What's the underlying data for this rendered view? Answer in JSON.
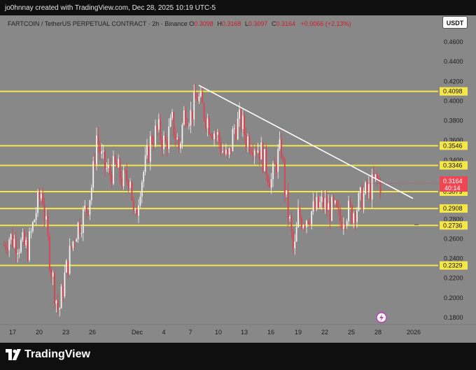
{
  "header": {
    "attribution": "jo0hnnay created with TradingView.com, Dec 28, 2025 10:19 UTC-5"
  },
  "legend": {
    "symbol": "FARTCOIN / TetherUS PERPETUAL CONTRACT · 2h · Binance",
    "open_label": "O",
    "open": "0.3098",
    "high_label": "H",
    "high": "0.3168",
    "low_label": "L",
    "low": "0.3097",
    "close_label": "C",
    "close": "0.3164",
    "change": "+0.0066 (+2.13%)"
  },
  "currency_button": "USDT",
  "footer": {
    "brand": "TradingView"
  },
  "colors": {
    "chart_bg": "#888888",
    "level_line": "#f5e64a",
    "trendline": "#ffffff",
    "up_candle": "#f2f2f2",
    "down_candle": "#e0404b",
    "last_price": "#f04653"
  },
  "icons": {
    "alert": "lightning-icon",
    "logo": "tradingview-logo-icon"
  },
  "chart_data": {
    "type": "candlestick",
    "symbol": "FARTCOIN / TetherUS PERPETUAL CONTRACT",
    "interval": "2h",
    "exchange": "Binance",
    "ylim": [
      0.17,
      0.47
    ],
    "y_ticks": [
      "0.4600",
      "0.4400",
      "0.4200",
      "0.4000",
      "0.3800",
      "0.3600",
      "0.3400",
      "0.3200",
      "0.2800",
      "0.2600",
      "0.2400",
      "0.2200",
      "0.2000",
      "0.1800"
    ],
    "x_ticks": [
      "17",
      "20",
      "23",
      "26",
      "Dec",
      "4",
      "7",
      "10",
      "13",
      "16",
      "19",
      "22",
      "25",
      "28",
      "2026"
    ],
    "levels": [
      "0.4098",
      "0.3546",
      "0.3346",
      "0.3079",
      "0.2908",
      "0.2736",
      "0.2329"
    ],
    "last_price": "0.3164",
    "countdown": "40:14",
    "trendline": {
      "from": [
        "Dec 7",
        0.416
      ],
      "to": [
        "Dec 31",
        0.301
      ]
    },
    "path": [
      [
        0,
        0.245
      ],
      [
        12,
        0.262
      ],
      [
        25,
        0.256
      ],
      [
        40,
        0.25
      ],
      [
        52,
        0.29
      ],
      [
        60,
        0.31
      ],
      [
        66,
        0.27
      ],
      [
        72,
        0.235
      ],
      [
        78,
        0.208
      ],
      [
        84,
        0.185
      ],
      [
        92,
        0.22
      ],
      [
        100,
        0.245
      ],
      [
        108,
        0.268
      ],
      [
        118,
        0.282
      ],
      [
        126,
        0.296
      ],
      [
        132,
        0.318
      ],
      [
        138,
        0.365
      ],
      [
        146,
        0.338
      ],
      [
        156,
        0.326
      ],
      [
        166,
        0.333
      ],
      [
        176,
        0.318
      ],
      [
        186,
        0.325
      ],
      [
        192,
        0.272
      ],
      [
        200,
        0.315
      ],
      [
        208,
        0.335
      ],
      [
        216,
        0.362
      ],
      [
        226,
        0.37
      ],
      [
        236,
        0.355
      ],
      [
        246,
        0.378
      ],
      [
        256,
        0.352
      ],
      [
        264,
        0.392
      ],
      [
        272,
        0.385
      ],
      [
        282,
        0.405
      ],
      [
        292,
        0.388
      ],
      [
        300,
        0.376
      ],
      [
        310,
        0.365
      ],
      [
        318,
        0.35
      ],
      [
        326,
        0.338
      ],
      [
        334,
        0.372
      ],
      [
        344,
        0.38
      ],
      [
        352,
        0.362
      ],
      [
        362,
        0.358
      ],
      [
        372,
        0.35
      ],
      [
        380,
        0.333
      ],
      [
        388,
        0.318
      ],
      [
        396,
        0.342
      ],
      [
        402,
        0.352
      ],
      [
        408,
        0.302
      ],
      [
        414,
        0.275
      ],
      [
        420,
        0.242
      ],
      [
        426,
        0.283
      ],
      [
        434,
        0.28
      ],
      [
        444,
        0.287
      ],
      [
        454,
        0.292
      ],
      [
        462,
        0.296
      ],
      [
        470,
        0.29
      ],
      [
        478,
        0.288
      ],
      [
        486,
        0.278
      ],
      [
        494,
        0.289
      ],
      [
        502,
        0.286
      ],
      [
        510,
        0.293
      ],
      [
        518,
        0.303
      ],
      [
        526,
        0.308
      ],
      [
        532,
        0.314
      ],
      [
        538,
        0.32
      ],
      [
        544,
        0.316
      ]
    ]
  }
}
